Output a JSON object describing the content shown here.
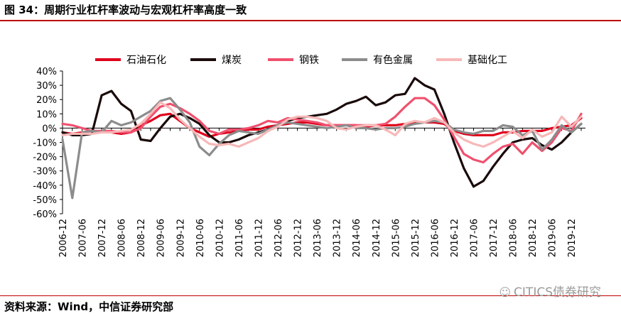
{
  "header": {
    "title": "图 34：周期行业杠杆率波动与宏观杠杆率高度一致"
  },
  "footer": {
    "source": "资料来源：Wind，中信证券研究部",
    "watermark": "CITICS债券研究",
    "watermark_icon": "wechat-icon"
  },
  "chart_data": {
    "type": "line",
    "title": "",
    "xlabel": "",
    "ylabel": "",
    "ylim": [
      -60,
      40
    ],
    "yticks": [
      "40%",
      "30%",
      "20%",
      "10%",
      "0%",
      "-10%",
      "-20%",
      "-30%",
      "-40%",
      "-50%",
      "-60%"
    ],
    "yunit": "%",
    "grid": false,
    "legend": "top",
    "x": [
      "2006-12",
      "2007-03",
      "2007-06",
      "2007-09",
      "2007-12",
      "2008-03",
      "2008-06",
      "2008-09",
      "2008-12",
      "2009-03",
      "2009-06",
      "2009-09",
      "2009-12",
      "2010-03",
      "2010-06",
      "2010-09",
      "2010-12",
      "2011-03",
      "2011-06",
      "2011-09",
      "2011-12",
      "2012-03",
      "2012-06",
      "2012-09",
      "2012-12",
      "2013-03",
      "2013-06",
      "2013-09",
      "2013-12",
      "2014-03",
      "2014-06",
      "2014-09",
      "2014-12",
      "2015-03",
      "2015-06",
      "2015-09",
      "2015-12",
      "2016-03",
      "2016-06",
      "2016-09",
      "2016-12",
      "2017-03",
      "2017-06",
      "2017-09",
      "2017-12",
      "2018-03",
      "2018-06",
      "2018-09",
      "2018-12",
      "2019-03",
      "2019-06",
      "2019-09",
      "2019-12",
      "2020-03"
    ],
    "xticks": [
      "2006-12",
      "2007-06",
      "2007-12",
      "2008-06",
      "2008-12",
      "2009-06",
      "2009-12",
      "2010-06",
      "2010-12",
      "2011-06",
      "2011-12",
      "2012-06",
      "2012-12",
      "2013-06",
      "2013-12",
      "2014-06",
      "2014-12",
      "2015-06",
      "2015-12",
      "2016-06",
      "2016-12",
      "2017-06",
      "2017-12",
      "2018-06",
      "2018-12",
      "2019-06",
      "2019-12"
    ],
    "series": [
      {
        "name": "石油石化",
        "color": "#e0001b",
        "values": [
          -3,
          -4,
          -3,
          -2,
          -3,
          -3,
          -4,
          -3,
          2,
          5,
          9,
          10,
          5,
          0,
          -3,
          -6,
          -4,
          -3,
          -2,
          -1,
          -1,
          1,
          2,
          3,
          4,
          4,
          3,
          2,
          2,
          2,
          2,
          1,
          2,
          2,
          2,
          3,
          4,
          4,
          4,
          3,
          -2,
          -4,
          -5,
          -5,
          -5,
          -3,
          -3,
          -2,
          -2,
          -2,
          0,
          1,
          2,
          7
        ]
      },
      {
        "name": "煤炭",
        "color": "#1a0a0a",
        "values": [
          -3,
          -5,
          -5,
          -4,
          23,
          26,
          17,
          12,
          -8,
          -9,
          0,
          8,
          10,
          7,
          3,
          -5,
          -10,
          -10,
          -8,
          -5,
          -3,
          -1,
          2,
          5,
          7,
          8,
          9,
          10,
          13,
          17,
          19,
          22,
          16,
          18,
          23,
          24,
          35,
          30,
          27,
          10,
          -10,
          -28,
          -41,
          -37,
          -27,
          -18,
          -10,
          -8,
          -7,
          -12,
          -15,
          -10,
          -3,
          3
        ]
      },
      {
        "name": "钢铁",
        "color": "#f0506e",
        "values": [
          3,
          2,
          0,
          -2,
          -2,
          -2,
          -3,
          -3,
          0,
          8,
          15,
          17,
          14,
          10,
          5,
          -2,
          -4,
          -1,
          -1,
          0,
          2,
          5,
          4,
          7,
          6,
          5,
          4,
          2,
          2,
          2,
          2,
          2,
          2,
          3,
          8,
          15,
          21,
          21,
          16,
          6,
          -6,
          -18,
          -22,
          -24,
          -18,
          -13,
          -11,
          -18,
          -10,
          -16,
          -10,
          0,
          -2,
          10
        ]
      },
      {
        "name": "有色金属",
        "color": "#8c8c8c",
        "values": [
          -8,
          -49,
          -3,
          -2,
          -3,
          5,
          2,
          4,
          8,
          12,
          19,
          21,
          13,
          4,
          -13,
          -19,
          -11,
          -5,
          -2,
          -3,
          -4,
          -1,
          2,
          4,
          3,
          2,
          1,
          0,
          1,
          2,
          0,
          0,
          -1,
          0,
          0,
          1,
          3,
          4,
          5,
          4,
          -1,
          -3,
          -4,
          -2,
          -2,
          2,
          1,
          -5,
          -2,
          -15,
          -8,
          2,
          -3,
          3
        ]
      },
      {
        "name": "基础化工",
        "color": "#f7b8b8",
        "values": [
          -5,
          -4,
          -4,
          -4,
          -3,
          -3,
          -2,
          -1,
          3,
          10,
          18,
          14,
          6,
          0,
          -6,
          -11,
          -12,
          -11,
          -13,
          -10,
          -7,
          -2,
          1,
          6,
          8,
          8,
          7,
          5,
          0,
          -1,
          1,
          2,
          2,
          -1,
          -5,
          3,
          5,
          4,
          7,
          4,
          -3,
          -8,
          -11,
          -13,
          -10,
          -6,
          -2,
          -7,
          -1,
          -6,
          -3,
          8,
          1,
          8
        ]
      }
    ]
  }
}
